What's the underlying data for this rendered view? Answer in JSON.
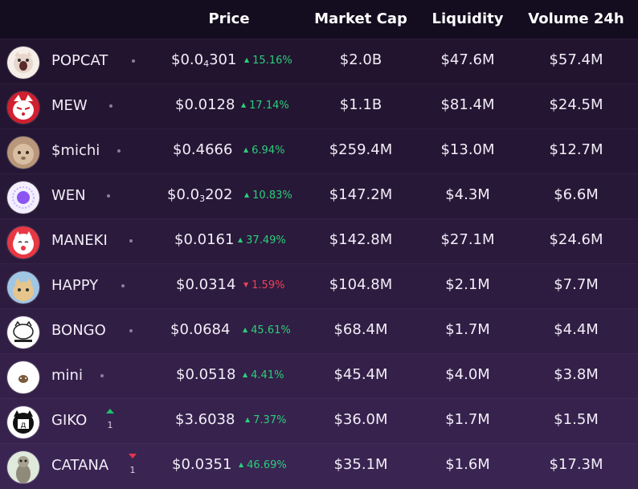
{
  "header": {
    "price": "Price",
    "market_cap": "Market Cap",
    "liquidity": "Liquidity",
    "volume": "Volume 24h"
  },
  "rows": [
    {
      "name": "POPCAT",
      "price_pre": "$0.0",
      "price_sub": "4",
      "price_post": "301",
      "change": "15.16%",
      "direction": "up",
      "market_cap": "$2.0B",
      "liquidity": "$47.6M",
      "volume": "$57.4M",
      "rank_change": null,
      "icon": "popcat-avatar-icon"
    },
    {
      "name": "MEW",
      "price_pre": "$0.0128",
      "price_sub": "",
      "price_post": "",
      "change": "17.14%",
      "direction": "up",
      "market_cap": "$1.1B",
      "liquidity": "$81.4M",
      "volume": "$24.5M",
      "rank_change": null,
      "icon": "mew-avatar-icon"
    },
    {
      "name": "$michi",
      "price_pre": "$0.4666",
      "price_sub": "",
      "price_post": "",
      "change": "6.94%",
      "direction": "up",
      "market_cap": "$259.4M",
      "liquidity": "$13.0M",
      "volume": "$12.7M",
      "rank_change": null,
      "icon": "michi-avatar-icon"
    },
    {
      "name": "WEN",
      "price_pre": "$0.0",
      "price_sub": "3",
      "price_post": "202",
      "change": "10.83%",
      "direction": "up",
      "market_cap": "$147.2M",
      "liquidity": "$4.3M",
      "volume": "$6.6M",
      "rank_change": null,
      "icon": "wen-avatar-icon"
    },
    {
      "name": "MANEKI",
      "price_pre": "$0.0161",
      "price_sub": "",
      "price_post": "",
      "change": "37.49%",
      "direction": "up",
      "market_cap": "$142.8M",
      "liquidity": "$27.1M",
      "volume": "$24.6M",
      "rank_change": null,
      "icon": "maneki-avatar-icon"
    },
    {
      "name": "HAPPY",
      "price_pre": "$0.0314",
      "price_sub": "",
      "price_post": "",
      "change": "1.59%",
      "direction": "down",
      "market_cap": "$104.8M",
      "liquidity": "$2.1M",
      "volume": "$7.7M",
      "rank_change": null,
      "icon": "happy-avatar-icon"
    },
    {
      "name": "BONGO",
      "price_pre": "$0.0684",
      "price_sub": "",
      "price_post": "",
      "change": "45.61%",
      "direction": "up",
      "market_cap": "$68.4M",
      "liquidity": "$1.7M",
      "volume": "$4.4M",
      "rank_change": null,
      "icon": "bongo-avatar-icon"
    },
    {
      "name": "mini",
      "price_pre": "$0.0518",
      "price_sub": "",
      "price_post": "",
      "change": "4.41%",
      "direction": "up",
      "market_cap": "$45.4M",
      "liquidity": "$4.0M",
      "volume": "$3.8M",
      "rank_change": null,
      "icon": "mini-avatar-icon"
    },
    {
      "name": "GIKO",
      "price_pre": "$3.6038",
      "price_sub": "",
      "price_post": "",
      "change": "7.37%",
      "direction": "up",
      "market_cap": "$36.0M",
      "liquidity": "$1.7M",
      "volume": "$1.5M",
      "rank_change": {
        "direction": "up",
        "value": "1"
      },
      "icon": "giko-avatar-icon"
    },
    {
      "name": "CATANA",
      "price_pre": "$0.0351",
      "price_sub": "",
      "price_post": "",
      "change": "46.69%",
      "direction": "up",
      "market_cap": "$35.1M",
      "liquidity": "$1.6M",
      "volume": "$17.3M",
      "rank_change": {
        "direction": "down",
        "value": "1"
      },
      "icon": "catana-avatar-icon"
    }
  ]
}
